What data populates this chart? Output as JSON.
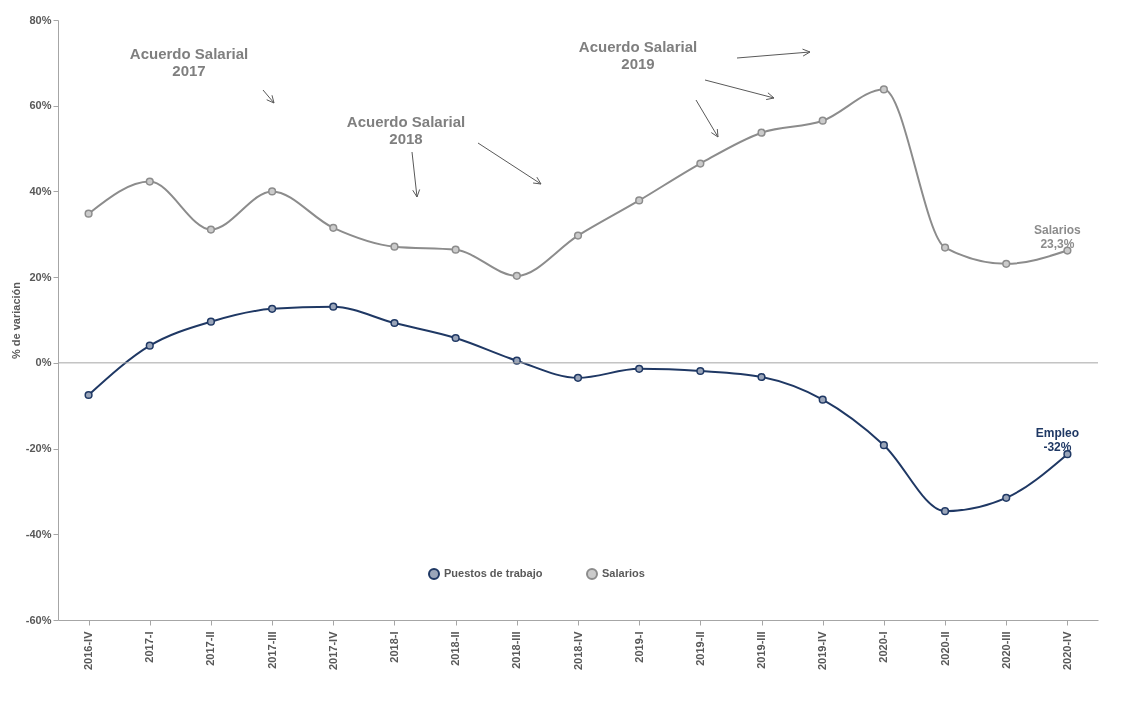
{
  "chart_data": {
    "type": "line",
    "ylabel": "% de variación",
    "categories": [
      "2016-IV",
      "2017-I",
      "2017-II",
      "2017-III",
      "2017-IV",
      "2018-I",
      "2018-II",
      "2018-III",
      "2018-IV",
      "2019-I",
      "2019-II",
      "2019-III",
      "2019-IV",
      "2020-I",
      "2020-II",
      "2020-III",
      "2020-IV"
    ],
    "series": [
      {
        "name": "Puestos de trabajo",
        "color": "#1f3864",
        "values": [
          -7.5,
          4.0,
          9.6,
          12.6,
          13.1,
          9.3,
          5.8,
          0.5,
          -3.5,
          -1.4,
          -1.9,
          -3.3,
          -8.6,
          -19.2,
          -34.6,
          -31.5,
          -21.3
        ]
      },
      {
        "name": "Salarios",
        "color": "#8c8c8c",
        "values": [
          34.8,
          42.3,
          31.1,
          40.0,
          31.5,
          27.1,
          26.4,
          20.3,
          29.7,
          37.9,
          46.5,
          53.7,
          56.5,
          63.8,
          26.9,
          23.1,
          26.2
        ]
      }
    ],
    "ylim": [
      -60,
      80
    ],
    "yticks": [
      {
        "value": -60,
        "label": "-60%"
      },
      {
        "value": -40,
        "label": "-40%"
      },
      {
        "value": -20,
        "label": "-20%"
      },
      {
        "value": 0,
        "label": "0%"
      },
      {
        "value": 20,
        "label": "20%"
      },
      {
        "value": 40,
        "label": "40%"
      },
      {
        "value": 60,
        "label": "60%"
      },
      {
        "value": 80,
        "label": "80%"
      }
    ],
    "ref_lines": [
      {
        "axis": "y",
        "value": 0,
        "color": "#a6a6a6"
      }
    ],
    "annotations": [
      "Acuerdo Salarial\n2017",
      "Acuerdo Salarial\n2018",
      "Acuerdo Salarial\n2019",
      {
        "text": "Salarios\n23,3%",
        "x": "2020-IV",
        "y": 26.2
      },
      {
        "text": "Empleo\n-32%",
        "x": "2020-IV",
        "y": -21.3
      }
    ],
    "marker": "circle",
    "line_style": "solid",
    "grid": false,
    "legend": "bottom"
  }
}
